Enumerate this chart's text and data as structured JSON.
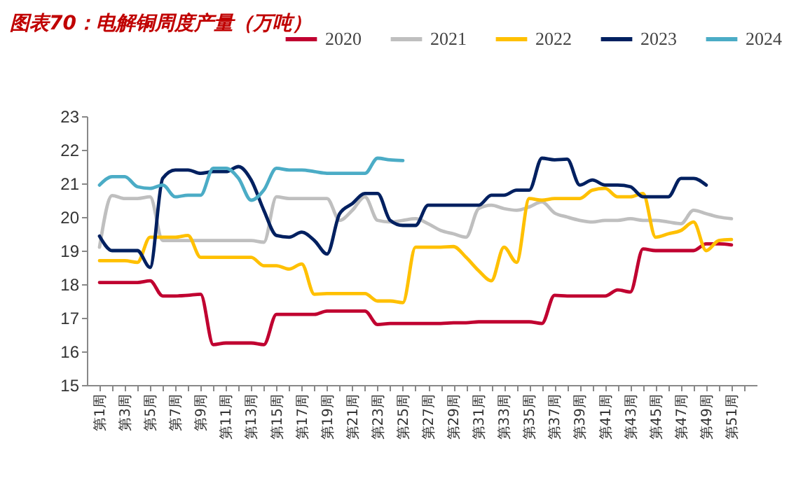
{
  "chart_data": {
    "type": "line",
    "title": "图表70：电解铜周度产量（万吨）",
    "categories": [
      "第1周",
      null,
      "第3周",
      null,
      "第5周",
      null,
      "第7周",
      null,
      "第9周",
      null,
      "第11周",
      null,
      "第13周",
      null,
      "第15周",
      null,
      "第17周",
      null,
      "第19周",
      null,
      "第21周",
      null,
      "第23周",
      null,
      "第25周",
      null,
      "第27周",
      null,
      "第29周",
      null,
      "第31周",
      null,
      "第33周",
      null,
      "第35周",
      null,
      "第37周",
      null,
      "第39周",
      null,
      "第41周",
      null,
      "第43周",
      null,
      "第45周",
      null,
      "第47周",
      null,
      "第49周",
      null,
      "第51周",
      null
    ],
    "series": [
      {
        "name": "2020",
        "color": "#c00030",
        "values": [
          18.05,
          18.05,
          18.05,
          18.05,
          18.1,
          17.65,
          17.65,
          17.67,
          17.7,
          16.2,
          16.25,
          16.25,
          16.25,
          16.2,
          17.1,
          17.1,
          17.1,
          17.1,
          17.2,
          17.2,
          17.2,
          17.2,
          16.8,
          16.83,
          16.83,
          16.83,
          16.83,
          16.83,
          16.85,
          16.85,
          16.88,
          16.88,
          16.88,
          16.88,
          16.88,
          16.83,
          17.67,
          17.65,
          17.65,
          17.65,
          17.65,
          17.83,
          17.77,
          19.05,
          19.0,
          19.0,
          19.0,
          19.0,
          19.2,
          19.2,
          19.17,
          null
        ]
      },
      {
        "name": "2021",
        "color": "#bfbfbf",
        "values": [
          19.1,
          20.64,
          20.55,
          20.55,
          20.6,
          19.3,
          19.3,
          19.3,
          19.3,
          19.3,
          19.3,
          19.3,
          19.3,
          19.25,
          20.6,
          20.55,
          20.55,
          20.55,
          20.55,
          19.9,
          20.2,
          20.6,
          19.9,
          19.85,
          19.9,
          19.95,
          19.8,
          19.6,
          19.5,
          19.4,
          20.25,
          20.35,
          20.25,
          20.2,
          20.3,
          20.45,
          20.12,
          20.0,
          19.9,
          19.85,
          19.9,
          19.9,
          19.95,
          19.9,
          19.9,
          19.85,
          19.8,
          20.2,
          20.1,
          20.0,
          19.95,
          null
        ]
      },
      {
        "name": "2022",
        "color": "#ffc000",
        "values": [
          18.7,
          18.7,
          18.7,
          18.65,
          19.4,
          19.4,
          19.4,
          19.45,
          18.8,
          18.8,
          18.8,
          18.8,
          18.8,
          18.55,
          18.55,
          18.45,
          18.6,
          17.7,
          17.72,
          17.72,
          17.72,
          17.72,
          17.5,
          17.5,
          17.45,
          19.1,
          19.1,
          19.1,
          19.12,
          18.8,
          18.4,
          18.1,
          19.1,
          18.65,
          20.55,
          20.5,
          20.55,
          20.55,
          20.55,
          20.8,
          20.85,
          20.6,
          20.6,
          20.7,
          19.4,
          19.5,
          19.6,
          19.85,
          19.0,
          19.3,
          19.33,
          null
        ]
      },
      {
        "name": "2023",
        "color": "#002060",
        "values": [
          19.43,
          19.0,
          19.0,
          19.0,
          18.5,
          21.15,
          21.4,
          21.4,
          21.3,
          21.35,
          21.35,
          21.5,
          21.1,
          20.2,
          19.45,
          19.4,
          19.55,
          19.3,
          18.9,
          20.1,
          20.4,
          20.7,
          20.7,
          19.9,
          19.75,
          19.75,
          20.35,
          20.35,
          20.35,
          20.35,
          20.35,
          20.65,
          20.65,
          20.8,
          20.8,
          21.75,
          21.7,
          21.72,
          20.95,
          21.1,
          20.95,
          20.95,
          20.9,
          20.6,
          20.6,
          20.6,
          21.15,
          21.15,
          20.95,
          null,
          null,
          null
        ]
      },
      {
        "name": "2024",
        "color": "#4bacc6",
        "values": [
          20.95,
          21.2,
          21.2,
          20.9,
          20.85,
          20.95,
          20.6,
          20.65,
          20.65,
          21.45,
          21.45,
          21.15,
          20.5,
          20.8,
          21.45,
          21.4,
          21.4,
          21.35,
          21.3,
          21.3,
          21.3,
          21.3,
          21.75,
          21.7,
          21.68,
          null,
          null,
          null,
          null,
          null,
          null,
          null,
          null,
          null,
          null,
          null,
          null,
          null,
          null,
          null,
          null,
          null,
          null,
          null,
          null,
          null,
          null,
          null,
          null,
          null,
          null,
          null
        ]
      }
    ],
    "ylim": [
      15,
      23
    ],
    "yticks": [
      15,
      16,
      17,
      18,
      19,
      20,
      21,
      22,
      23
    ],
    "grid": false,
    "legend": "top"
  }
}
